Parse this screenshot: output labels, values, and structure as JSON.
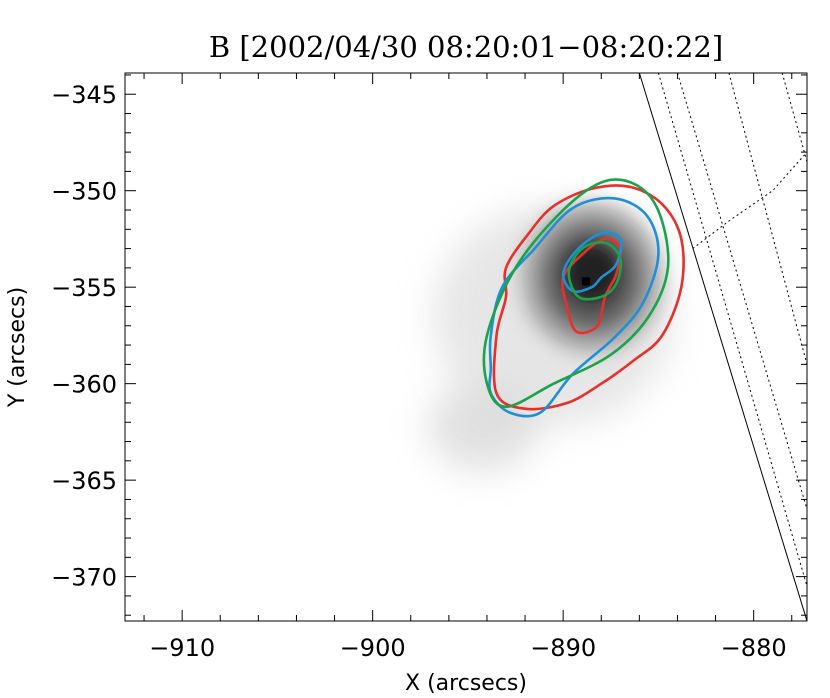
{
  "chart_data": {
    "type": "contour",
    "title": "B [2002/04/30 08:20:01−08:20:22]",
    "xlabel": "X (arcsecs)",
    "ylabel": "Y (arcsecs)",
    "xlim": [
      -913,
      -877.2
    ],
    "ylim": [
      -372.3,
      -343.9
    ],
    "xticks": [
      -910,
      -900,
      -890,
      -880
    ],
    "xtick_labels": [
      "−910",
      "−900",
      "−890",
      "−880"
    ],
    "yticks": [
      -345,
      -350,
      -355,
      -360,
      -365,
      -370
    ],
    "ytick_labels": [
      "−345",
      "−350",
      "−355",
      "−360",
      "−365",
      "−370"
    ],
    "grid": false,
    "background_image": {
      "description_colormap": "grayscale intensity",
      "peak": {
        "x": -888.5,
        "y": -354.5
      },
      "secondary_blob": {
        "x": -894.2,
        "y": -362.2
      }
    },
    "centroid_marker": {
      "x": -888.8,
      "y": -354.7
    },
    "limb_line": [
      [
        -886.0,
        -343.9
      ],
      [
        -877.2,
        -372.3
      ]
    ],
    "dotted_grid_lines": [
      [
        [
          -884.0,
          -343.9
        ],
        [
          -877.2,
          -366.5
        ]
      ],
      [
        [
          -881.3,
          -343.9
        ],
        [
          -877.2,
          -359.0
        ]
      ],
      [
        [
          -878.5,
          -343.9
        ],
        [
          -877.2,
          -348.5
        ]
      ],
      [
        [
          -885.0,
          -343.9
        ],
        [
          -877.2,
          -370.5
        ]
      ],
      [
        [
          -883.2,
          -353.0
        ],
        [
          -881.2,
          -351.5
        ],
        [
          -879.0,
          -350.0
        ],
        [
          -877.2,
          -348.0
        ]
      ]
    ],
    "series": [
      {
        "color": "#e8302a",
        "contours": [
          [
            [
              -889.0,
              -353.3
            ],
            [
              -887.8,
              -352.5
            ],
            [
              -887.0,
              -353.0
            ],
            [
              -887.2,
              -354.3
            ],
            [
              -887.8,
              -355.5
            ],
            [
              -888.2,
              -357.0
            ],
            [
              -889.3,
              -357.3
            ],
            [
              -889.8,
              -356.0
            ],
            [
              -890.0,
              -354.5
            ]
          ],
          [
            [
              -893.0,
              -354.0
            ],
            [
              -891.8,
              -352.2
            ],
            [
              -890.5,
              -350.8
            ],
            [
              -888.5,
              -349.9
            ],
            [
              -886.5,
              -349.8
            ],
            [
              -884.8,
              -350.7
            ],
            [
              -883.8,
              -352.5
            ],
            [
              -883.8,
              -355.0
            ],
            [
              -884.8,
              -357.5
            ],
            [
              -886.3,
              -358.8
            ],
            [
              -888.0,
              -360.0
            ],
            [
              -889.8,
              -361.0
            ],
            [
              -892.0,
              -361.3
            ],
            [
              -893.5,
              -360.5
            ],
            [
              -893.5,
              -357.5
            ],
            [
              -893.0,
              -355.5
            ]
          ]
        ]
      },
      {
        "color": "#1f8fd6",
        "contours": [
          [
            [
              -890.0,
              -354.3
            ],
            [
              -889.3,
              -353.1
            ],
            [
              -888.0,
              -352.2
            ],
            [
              -887.0,
              -352.5
            ],
            [
              -887.2,
              -353.8
            ],
            [
              -888.0,
              -354.5
            ],
            [
              -888.5,
              -355.0
            ],
            [
              -889.5,
              -355.2
            ]
          ],
          [
            [
              -893.8,
              -357.5
            ],
            [
              -893.2,
              -355.0
            ],
            [
              -891.5,
              -353.0
            ],
            [
              -889.5,
              -350.9
            ],
            [
              -887.3,
              -350.4
            ],
            [
              -885.6,
              -351.3
            ],
            [
              -885.0,
              -353.3
            ],
            [
              -885.8,
              -355.8
            ],
            [
              -887.3,
              -357.6
            ],
            [
              -889.5,
              -359.5
            ],
            [
              -891.2,
              -361.5
            ],
            [
              -892.8,
              -361.5
            ],
            [
              -893.8,
              -360.5
            ],
            [
              -893.8,
              -359.2
            ]
          ]
        ]
      },
      {
        "color": "#1aa34a",
        "contours": [
          [
            [
              -889.7,
              -354.2
            ],
            [
              -889.0,
              -353.0
            ],
            [
              -887.8,
              -352.7
            ],
            [
              -887.0,
              -353.5
            ],
            [
              -887.2,
              -354.8
            ],
            [
              -888.0,
              -355.5
            ],
            [
              -889.2,
              -355.5
            ]
          ],
          [
            [
              -894.0,
              -357.5
            ],
            [
              -892.5,
              -354.0
            ],
            [
              -890.0,
              -351.0
            ],
            [
              -887.8,
              -349.5
            ],
            [
              -886.0,
              -349.8
            ],
            [
              -884.9,
              -351.3
            ],
            [
              -884.5,
              -354.0
            ],
            [
              -885.5,
              -356.5
            ],
            [
              -887.5,
              -358.5
            ],
            [
              -890.5,
              -360.0
            ],
            [
              -893.0,
              -361.2
            ],
            [
              -894.0,
              -360.0
            ]
          ]
        ]
      }
    ]
  }
}
